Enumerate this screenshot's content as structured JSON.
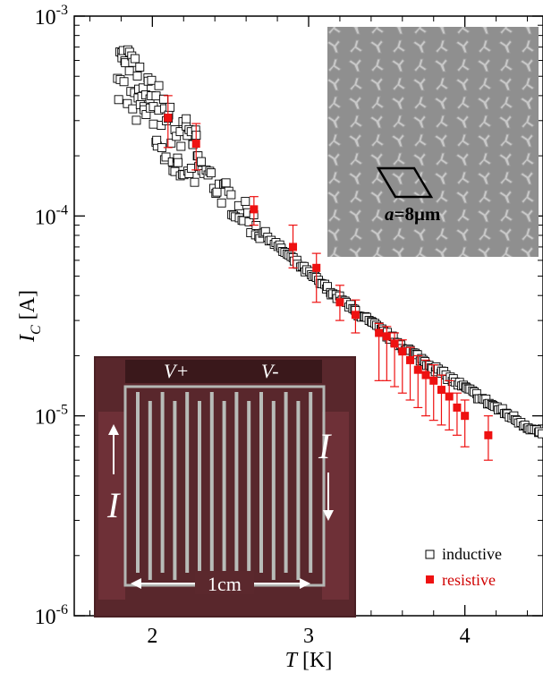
{
  "chart_data": {
    "type": "scatter",
    "title": "",
    "xlabel": {
      "italic": "T",
      "rest": " [K]"
    },
    "ylabel": {
      "italic": "I",
      "sub": "C",
      "rest": " [A]"
    },
    "xlim": [
      1.5,
      4.5
    ],
    "ylim": [
      1e-06,
      0.001
    ],
    "yscale": "log",
    "grid": false,
    "legend_position": "bottom-right",
    "x_ticks": [
      2,
      3,
      4
    ],
    "y_ticks": [
      {
        "value": 1e-06,
        "base": "10",
        "exp": "-6"
      },
      {
        "value": 1e-05,
        "base": "10",
        "exp": "-5"
      },
      {
        "value": 0.0001,
        "base": "10",
        "exp": "-4"
      },
      {
        "value": 0.001,
        "base": "10",
        "exp": "-3"
      }
    ],
    "series": [
      {
        "name": "inductive",
        "marker": "open-square",
        "color": "#000000"
      },
      {
        "name": "resistive",
        "marker": "filled-square",
        "color": "#ee1111",
        "points": [
          {
            "x": 2.1,
            "y": 0.00031,
            "lo": 0.00022,
            "hi": 0.0004
          },
          {
            "x": 2.28,
            "y": 0.00023,
            "lo": 0.00017,
            "hi": 0.00029
          },
          {
            "x": 2.65,
            "y": 0.000108,
            "lo": 9e-05,
            "hi": 0.000125
          },
          {
            "x": 2.9,
            "y": 7e-05,
            "lo": 5.5e-05,
            "hi": 9e-05
          },
          {
            "x": 3.05,
            "y": 5.5e-05,
            "lo": 3.7e-05,
            "hi": 6.5e-05
          },
          {
            "x": 3.2,
            "y": 3.7e-05,
            "lo": 3e-05,
            "hi": 4.5e-05
          },
          {
            "x": 3.3,
            "y": 3.2e-05,
            "lo": 2.6e-05,
            "hi": 3.8e-05
          },
          {
            "x": 3.45,
            "y": 2.6e-05,
            "lo": 1.5e-05,
            "hi": 2.9e-05
          },
          {
            "x": 3.5,
            "y": 2.5e-05,
            "lo": 1.5e-05,
            "hi": 2.8e-05
          },
          {
            "x": 3.55,
            "y": 2.3e-05,
            "lo": 1.4e-05,
            "hi": 2.6e-05
          },
          {
            "x": 3.6,
            "y": 2.1e-05,
            "lo": 1.3e-05,
            "hi": 2.4e-05
          },
          {
            "x": 3.65,
            "y": 1.9e-05,
            "lo": 1.2e-05,
            "hi": 2.2e-05
          },
          {
            "x": 3.7,
            "y": 1.7e-05,
            "lo": 1.1e-05,
            "hi": 2e-05
          },
          {
            "x": 3.75,
            "y": 1.6e-05,
            "lo": 1e-05,
            "hi": 1.9e-05
          },
          {
            "x": 3.8,
            "y": 1.5e-05,
            "lo": 9.5e-06,
            "hi": 1.8e-05
          },
          {
            "x": 3.85,
            "y": 1.35e-05,
            "lo": 9e-06,
            "hi": 1.6e-05
          },
          {
            "x": 3.9,
            "y": 1.25e-05,
            "lo": 8.5e-06,
            "hi": 1.5e-05
          },
          {
            "x": 3.95,
            "y": 1.1e-05,
            "lo": 8e-06,
            "hi": 1.3e-05
          },
          {
            "x": 4.0,
            "y": 1e-05,
            "lo": 7e-06,
            "hi": 1.2e-05
          },
          {
            "x": 4.15,
            "y": 8e-06,
            "lo": 6e-06,
            "hi": 1e-05
          }
        ]
      }
    ],
    "insets": {
      "sem": {
        "label_italic": "a",
        "label_rest": "=8μm"
      },
      "device": {
        "v_plus": "V+",
        "v_minus": "V-",
        "current_left": "I",
        "current_right": "I",
        "scale": "1cm"
      }
    }
  }
}
